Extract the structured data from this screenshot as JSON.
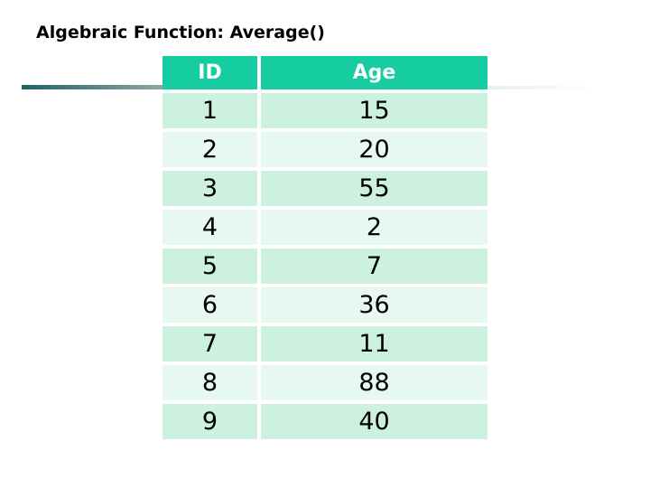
{
  "slide": {
    "title": "Algebraic Function: Average()"
  },
  "table": {
    "columns": [
      "ID",
      "Age"
    ],
    "rows": [
      [
        1,
        15
      ],
      [
        2,
        20
      ],
      [
        3,
        55
      ],
      [
        4,
        2
      ],
      [
        5,
        7
      ],
      [
        6,
        36
      ],
      [
        7,
        11
      ],
      [
        8,
        88
      ],
      [
        9,
        40
      ]
    ]
  },
  "colors": {
    "header_bg": "#15cda0",
    "row_odd_bg": "#cdf1df",
    "row_even_bg": "#e7f8f0",
    "title_text": "#000000",
    "header_text": "#ffffff",
    "rule_gradient_start": "#1e6365",
    "rule_gradient_end": "#90a5a7"
  },
  "chart_data": {
    "type": "table",
    "title": "Algebraic Function: Average()",
    "columns": [
      "ID",
      "Age"
    ],
    "rows": [
      [
        1,
        15
      ],
      [
        2,
        20
      ],
      [
        3,
        55
      ],
      [
        4,
        2
      ],
      [
        5,
        7
      ],
      [
        6,
        36
      ],
      [
        7,
        11
      ],
      [
        8,
        88
      ],
      [
        9,
        40
      ]
    ]
  }
}
